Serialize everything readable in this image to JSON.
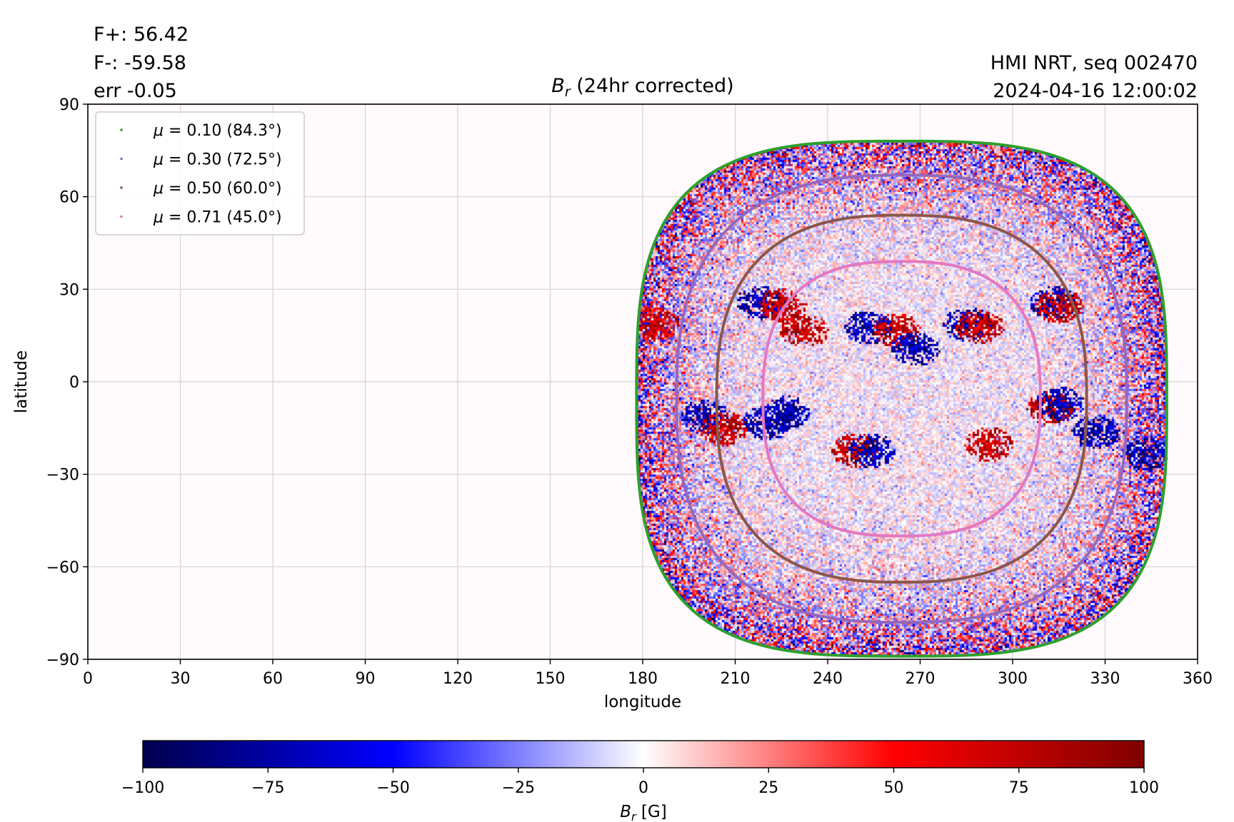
{
  "stats": {
    "fplus": "F+: 56.42",
    "fminus": "F-: -59.58",
    "err": "err -0.05"
  },
  "source": {
    "line1": "HMI NRT, seq 002470",
    "line2": "2024-04-16 12:00:02"
  },
  "chart_data": {
    "type": "heatmap",
    "title": "B_r (24hr corrected)",
    "title_main": "B",
    "title_sub": "r",
    "title_rest": " (24hr corrected)",
    "xlabel": "longitude",
    "ylabel": "latitude",
    "xlim": [
      0,
      360
    ],
    "ylim": [
      -90,
      90
    ],
    "xticks": [
      0,
      30,
      60,
      90,
      120,
      150,
      180,
      210,
      240,
      270,
      300,
      330,
      360
    ],
    "yticks": [
      90,
      60,
      30,
      0,
      -30,
      -60,
      -90
    ],
    "ytick_labels": [
      "90",
      "60",
      "30",
      "0",
      "−30",
      "−60",
      "−90"
    ],
    "grid": true,
    "legend_position": "top-left",
    "disk_center": {
      "lon": 264,
      "lat": -8
    },
    "contours": [
      {
        "label_value": "0.10",
        "label_angle": "(84.3°)",
        "color": "#2ca02c",
        "lon_range": [
          178,
          350
        ],
        "lat_range": [
          -89,
          78
        ]
      },
      {
        "label_value": "0.30",
        "label_angle": "(72.5°)",
        "color": "#9467bd",
        "lon_range": [
          191,
          337
        ],
        "lat_range": [
          -78,
          67
        ]
      },
      {
        "label_value": "0.50",
        "label_angle": "(60.0°)",
        "color": "#8c564b",
        "lon_range": [
          204,
          324
        ],
        "lat_range": [
          -65,
          54
        ]
      },
      {
        "label_value": "0.71",
        "label_angle": "(45.0°)",
        "color": "#e377c2",
        "lon_range": [
          219,
          309
        ],
        "lat_range": [
          -50,
          39
        ]
      }
    ],
    "active_regions": [
      {
        "lon": 218,
        "lat": 26,
        "polarity": "neg"
      },
      {
        "lon": 225,
        "lat": 25,
        "polarity": "pos"
      },
      {
        "lon": 232,
        "lat": 17,
        "polarity": "pos"
      },
      {
        "lon": 253,
        "lat": 18,
        "polarity": "neg"
      },
      {
        "lon": 262,
        "lat": 17,
        "polarity": "pos"
      },
      {
        "lon": 268,
        "lat": 11,
        "polarity": "neg"
      },
      {
        "lon": 285,
        "lat": 19,
        "polarity": "neg"
      },
      {
        "lon": 289,
        "lat": 18,
        "polarity": "pos"
      },
      {
        "lon": 313,
        "lat": 26,
        "polarity": "neg"
      },
      {
        "lon": 315,
        "lat": 25,
        "polarity": "pos"
      },
      {
        "lon": 184,
        "lat": 19,
        "polarity": "pos"
      },
      {
        "lon": 200,
        "lat": -11,
        "polarity": "neg"
      },
      {
        "lon": 206,
        "lat": -15,
        "polarity": "pos"
      },
      {
        "lon": 220,
        "lat": -13,
        "polarity": "neg"
      },
      {
        "lon": 226,
        "lat": -10,
        "polarity": "neg"
      },
      {
        "lon": 249,
        "lat": -22,
        "polarity": "pos"
      },
      {
        "lon": 254,
        "lat": -22,
        "polarity": "neg"
      },
      {
        "lon": 292,
        "lat": -20,
        "polarity": "pos"
      },
      {
        "lon": 312,
        "lat": -8,
        "polarity": "pos"
      },
      {
        "lon": 315,
        "lat": -7,
        "polarity": "neg"
      },
      {
        "lon": 327,
        "lat": -16,
        "polarity": "neg"
      },
      {
        "lon": 343,
        "lat": -23,
        "polarity": "neg"
      }
    ],
    "colorbar": {
      "label_main": "B",
      "label_sub": "r",
      "label_unit": " [G]",
      "range": [
        -100,
        100
      ],
      "ticks": [
        -100,
        -75,
        -50,
        -25,
        0,
        25,
        50,
        75,
        100
      ],
      "tick_labels": [
        "−100",
        "−75",
        "−50",
        "−25",
        "0",
        "25",
        "50",
        "75",
        "100"
      ],
      "colors": [
        "#00004c",
        "#0000ff",
        "#ffffff",
        "#ff0000",
        "#800000"
      ]
    }
  }
}
